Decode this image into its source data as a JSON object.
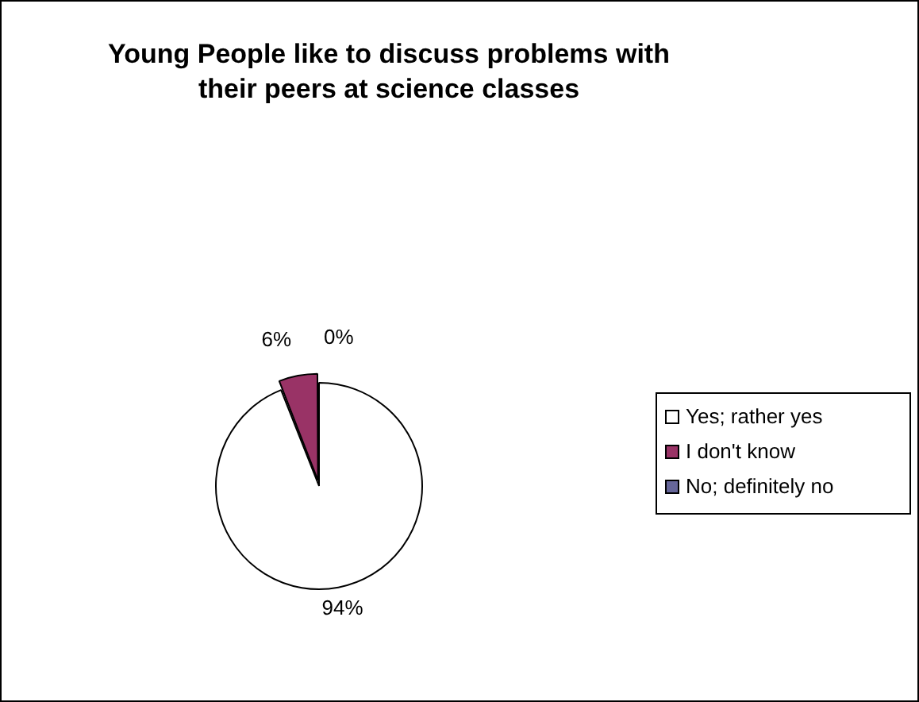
{
  "chart_data": {
    "type": "pie",
    "title": "Young People like to discuss problems with their peers at science classes",
    "categories": [
      "Yes; rather yes",
      "I don't know",
      "No; definitely no"
    ],
    "values": [
      94,
      6,
      0
    ],
    "colors": [
      "#ffffff",
      "#993366",
      "#666699"
    ],
    "value_labels": [
      "94%",
      "6%",
      "0%"
    ],
    "legend": "right"
  }
}
